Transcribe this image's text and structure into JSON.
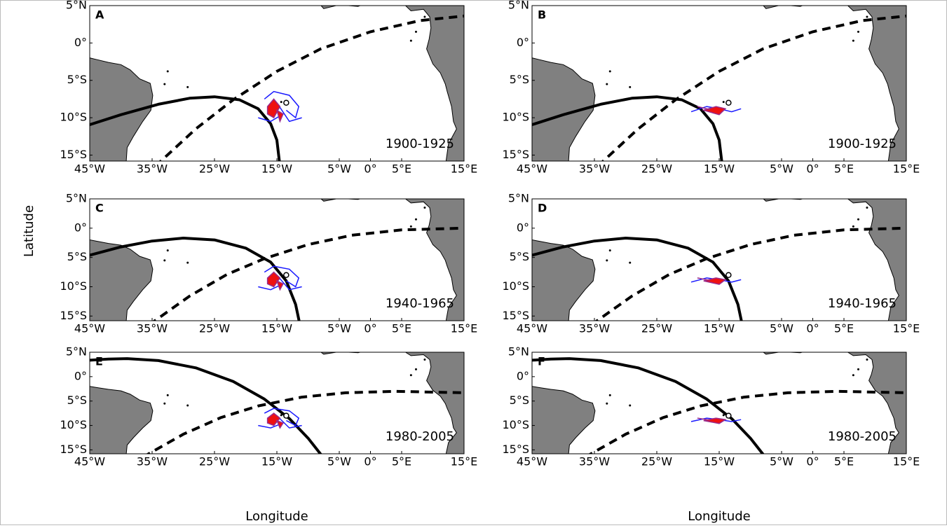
{
  "figure": {
    "ylabel": "Latitude",
    "xlabels": [
      "Longitude",
      "Longitude"
    ]
  },
  "chart_data": [
    {
      "type": "map",
      "label": "A",
      "period": "1900-1925",
      "xlim": [
        -45,
        15
      ],
      "ylim": [
        -15.8,
        5
      ],
      "xticks": [
        {
          "value": -45,
          "label": "45°W"
        },
        {
          "value": -35,
          "label": "35°W"
        },
        {
          "value": -25,
          "label": "25°W"
        },
        {
          "value": -15,
          "label": "15°W"
        },
        {
          "value": -5,
          "label": "5°W"
        },
        {
          "value": 0,
          "label": "0°"
        },
        {
          "value": 5,
          "label": "5°E"
        },
        {
          "value": 15,
          "label": "15°E"
        }
      ],
      "yticks": [
        {
          "value": 5,
          "label": "5°N"
        },
        {
          "value": 0,
          "label": "0°"
        },
        {
          "value": -5,
          "label": "5°S"
        },
        {
          "value": -10,
          "label": "10°S"
        },
        {
          "value": -15,
          "label": "15°S"
        }
      ]
    },
    {
      "type": "map",
      "label": "B",
      "period": "1900-1925",
      "xlim": [
        -45,
        15
      ],
      "ylim": [
        -15.8,
        5
      ],
      "xticks": [
        {
          "value": -45,
          "label": "45°W"
        },
        {
          "value": -35,
          "label": "35°W"
        },
        {
          "value": -25,
          "label": "25°W"
        },
        {
          "value": -15,
          "label": "15°W"
        },
        {
          "value": -5,
          "label": "5°W"
        },
        {
          "value": 0,
          "label": "0°"
        },
        {
          "value": 5,
          "label": "5°E"
        },
        {
          "value": 15,
          "label": "15°E"
        }
      ],
      "yticks": [
        {
          "value": 5,
          "label": "5°N"
        },
        {
          "value": 0,
          "label": "0°"
        },
        {
          "value": -5,
          "label": "5°S"
        },
        {
          "value": -10,
          "label": "10°S"
        },
        {
          "value": -15,
          "label": "15°S"
        }
      ]
    },
    {
      "type": "map",
      "label": "C",
      "period": "1940-1965",
      "xlim": [
        -45,
        15
      ],
      "ylim": [
        -15.8,
        5
      ],
      "xticks": [
        {
          "value": -45,
          "label": "45°W"
        },
        {
          "value": -35,
          "label": "35°W"
        },
        {
          "value": -25,
          "label": "25°W"
        },
        {
          "value": -15,
          "label": "15°W"
        },
        {
          "value": -5,
          "label": "5°W"
        },
        {
          "value": 0,
          "label": "0°"
        },
        {
          "value": 5,
          "label": "5°E"
        },
        {
          "value": 15,
          "label": "15°E"
        }
      ],
      "yticks": [
        {
          "value": 5,
          "label": "5°N"
        },
        {
          "value": 0,
          "label": "0°"
        },
        {
          "value": -5,
          "label": "5°S"
        },
        {
          "value": -10,
          "label": "10°S"
        },
        {
          "value": -15,
          "label": "15°S"
        }
      ]
    },
    {
      "type": "map",
      "label": "D",
      "period": "1940-1965",
      "xlim": [
        -45,
        15
      ],
      "ylim": [
        -15.8,
        5
      ],
      "xticks": [
        {
          "value": -45,
          "label": "45°W"
        },
        {
          "value": -35,
          "label": "35°W"
        },
        {
          "value": -25,
          "label": "25°W"
        },
        {
          "value": -15,
          "label": "15°W"
        },
        {
          "value": -5,
          "label": "5°W"
        },
        {
          "value": 0,
          "label": "0°"
        },
        {
          "value": 5,
          "label": "5°E"
        },
        {
          "value": 15,
          "label": "15°E"
        }
      ],
      "yticks": [
        {
          "value": 5,
          "label": "5°N"
        },
        {
          "value": 0,
          "label": "0°"
        },
        {
          "value": -5,
          "label": "5°S"
        },
        {
          "value": -10,
          "label": "10°S"
        },
        {
          "value": -15,
          "label": "15°S"
        }
      ]
    },
    {
      "type": "map",
      "label": "E",
      "period": "1980-2005",
      "xlim": [
        -45,
        15
      ],
      "ylim": [
        -15.8,
        5
      ],
      "xticks": [
        {
          "value": -45,
          "label": "45°W"
        },
        {
          "value": -35,
          "label": "35°W"
        },
        {
          "value": -25,
          "label": "25°W"
        },
        {
          "value": -15,
          "label": "15°W"
        },
        {
          "value": -5,
          "label": "5°W"
        },
        {
          "value": 0,
          "label": "0°"
        },
        {
          "value": 5,
          "label": "5°E"
        },
        {
          "value": 15,
          "label": "15°E"
        }
      ],
      "yticks": [
        {
          "value": 5,
          "label": "5°N"
        },
        {
          "value": 0,
          "label": "0°"
        },
        {
          "value": -5,
          "label": "5°S"
        },
        {
          "value": -10,
          "label": "10°S"
        },
        {
          "value": -15,
          "label": "15°S"
        }
      ]
    },
    {
      "type": "map",
      "label": "F",
      "period": "1980-2005",
      "xlim": [
        -45,
        15
      ],
      "ylim": [
        -15.8,
        5
      ],
      "xticks": [
        {
          "value": -45,
          "label": "45°W"
        },
        {
          "value": -35,
          "label": "35°W"
        },
        {
          "value": -25,
          "label": "25°W"
        },
        {
          "value": -15,
          "label": "15°W"
        },
        {
          "value": -5,
          "label": "5°W"
        },
        {
          "value": 0,
          "label": "0°"
        },
        {
          "value": 5,
          "label": "5°E"
        },
        {
          "value": 15,
          "label": "15°E"
        }
      ],
      "yticks": [
        {
          "value": 5,
          "label": "5°N"
        },
        {
          "value": 0,
          "label": "0°"
        },
        {
          "value": -5,
          "label": "5°S"
        },
        {
          "value": -10,
          "label": "10°S"
        },
        {
          "value": -15,
          "label": "15°S"
        }
      ]
    }
  ]
}
